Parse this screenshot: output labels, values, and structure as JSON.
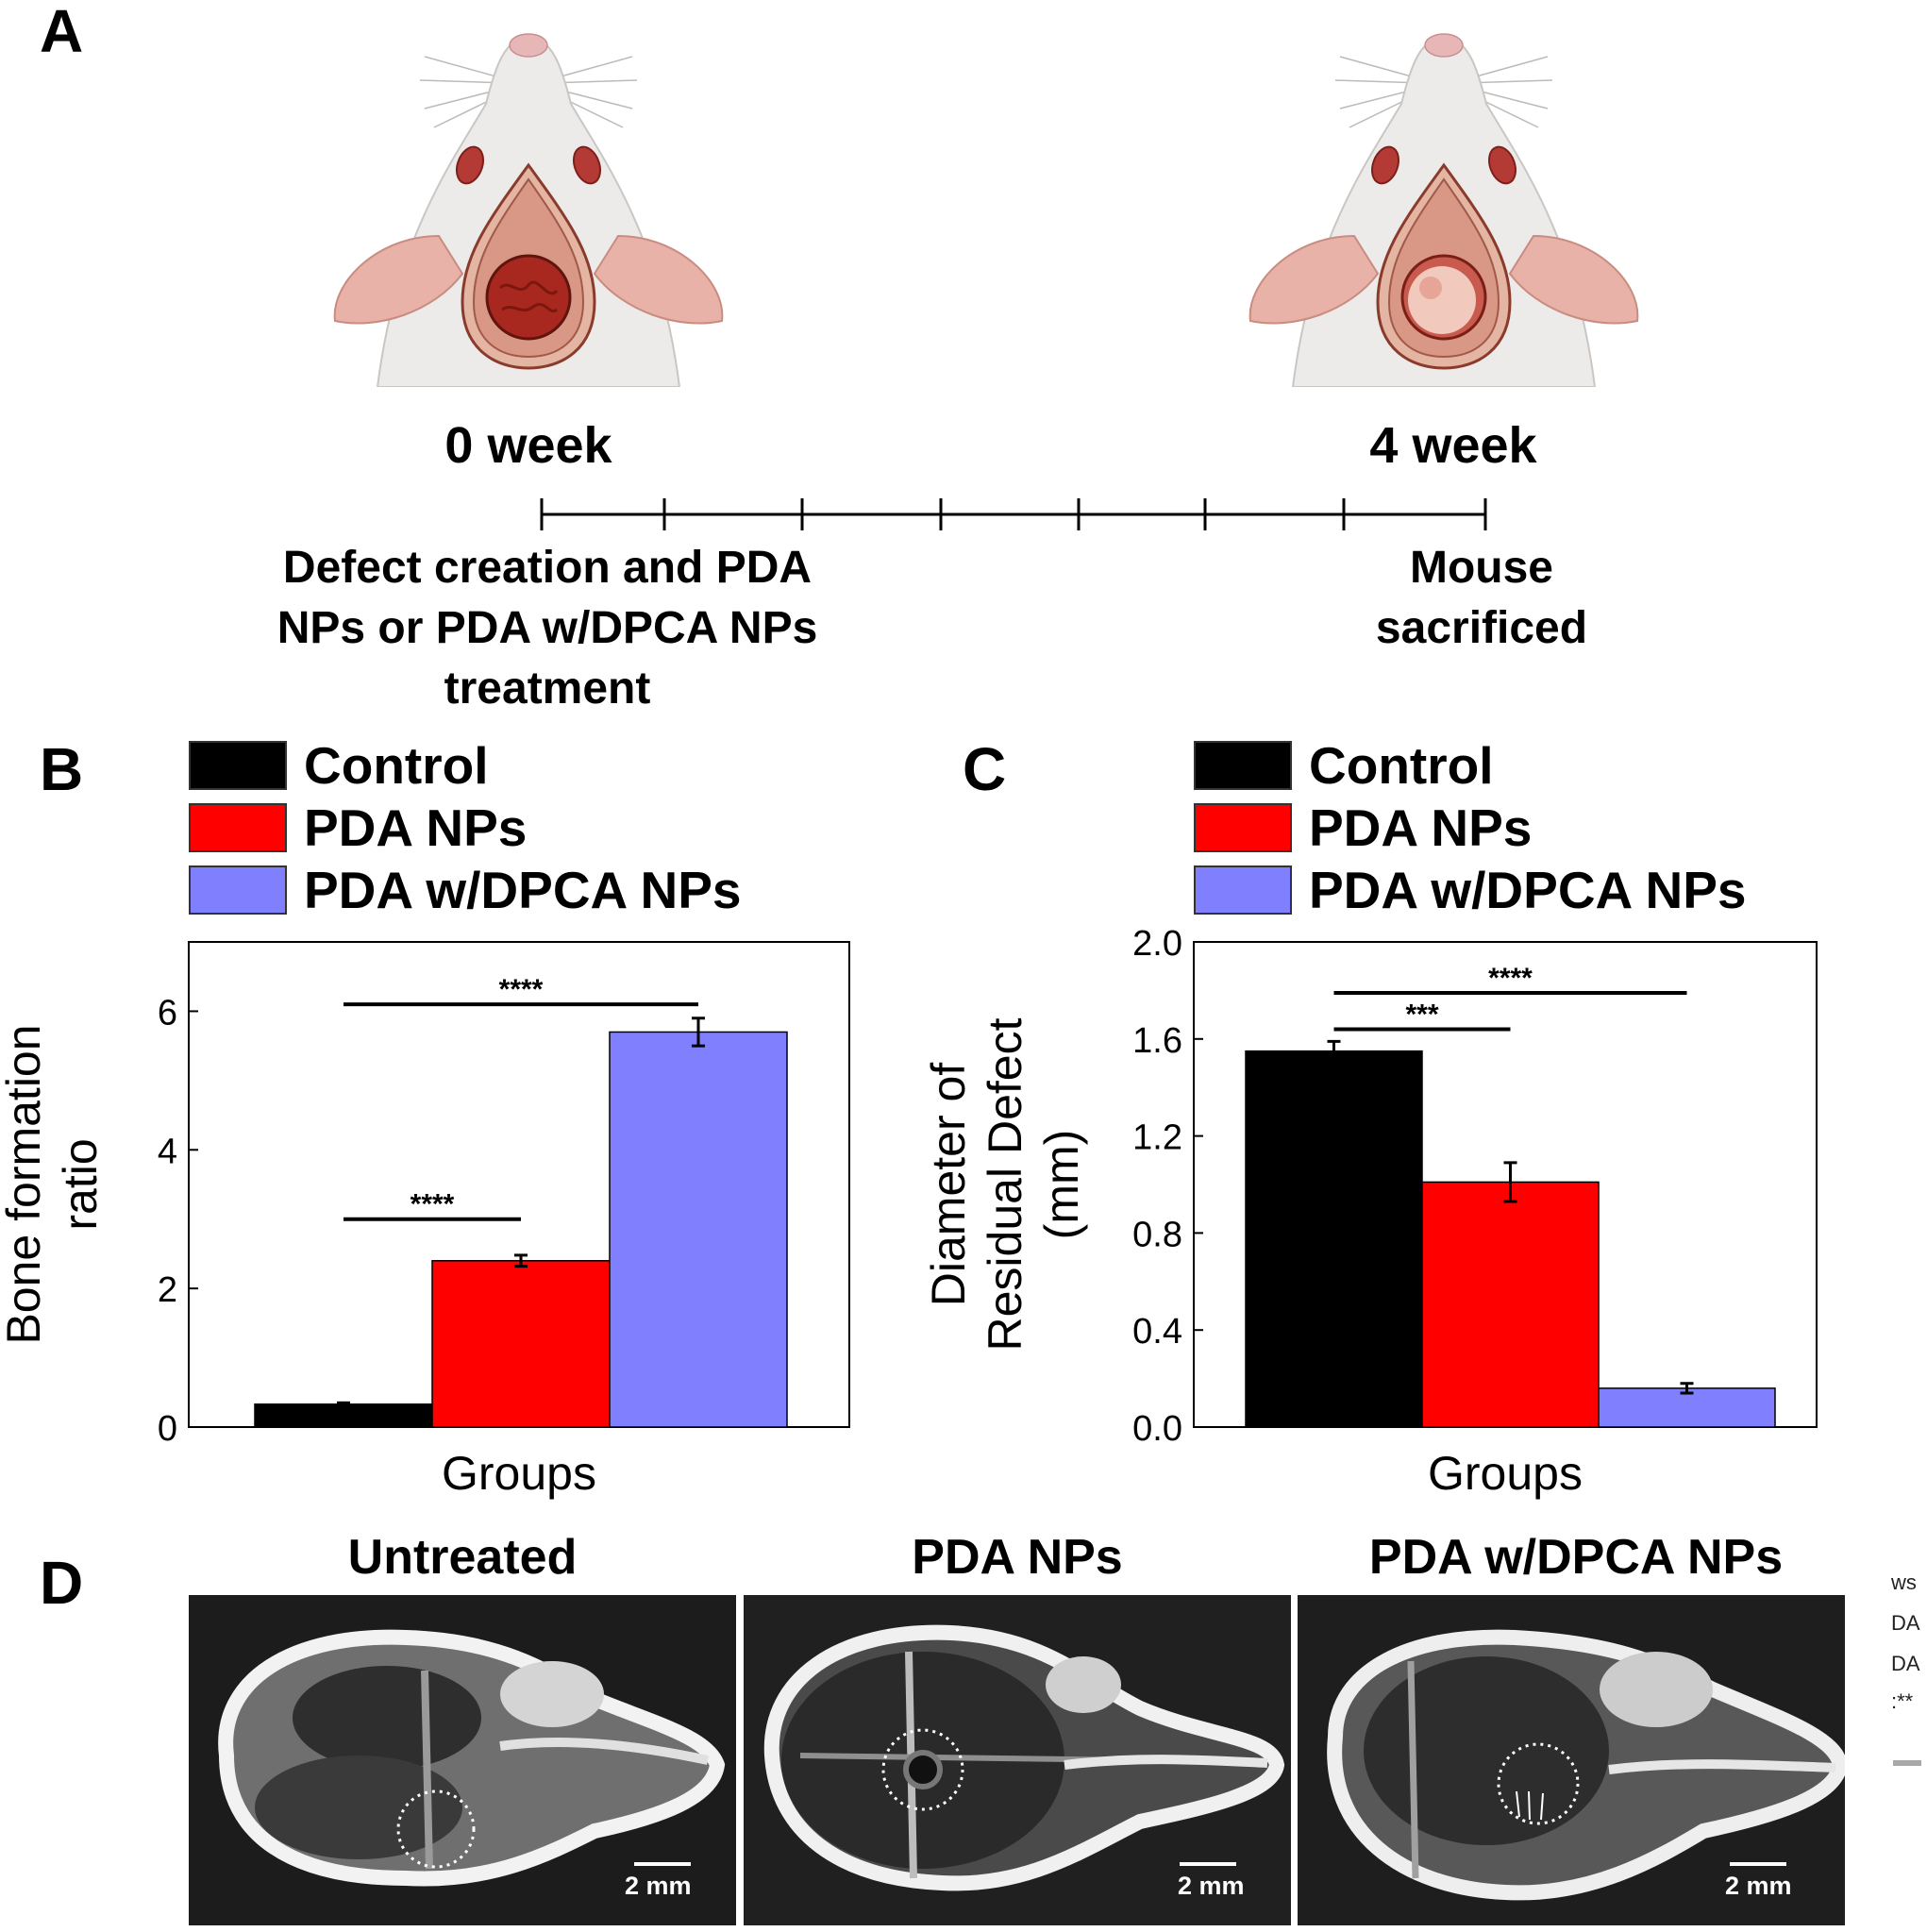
{
  "panels": {
    "a": "A",
    "b": "B",
    "c": "C",
    "d": "D"
  },
  "timeline": {
    "start_label": "0 week",
    "end_label": "4 week",
    "start_event_lines": [
      "Defect creation and PDA",
      "NPs or PDA w/DPCA NPs",
      "treatment"
    ],
    "end_event_lines": [
      "Mouse",
      "sacrificed"
    ]
  },
  "legend": [
    {
      "label": "Control",
      "color": "#000000"
    },
    {
      "label": "PDA NPs",
      "color": "#ff0000"
    },
    {
      "label": "PDA w/DPCA NPs",
      "color": "#8080ff"
    }
  ],
  "chart_data": [
    {
      "type": "bar",
      "panel": "B",
      "categories": [
        "Control",
        "PDA NPs",
        "PDA w/DPCA NPs"
      ],
      "values": [
        0.33,
        2.4,
        5.7
      ],
      "errors": [
        0.02,
        0.08,
        0.2
      ],
      "colors": [
        "#000000",
        "#ff0000",
        "#8080ff"
      ],
      "xlabel": "Groups",
      "ylabel_lines": [
        "Bone formation",
        "ratio"
      ],
      "ylim": [
        0,
        7
      ],
      "yticks": [
        "0",
        "2",
        "4",
        "6"
      ],
      "significance": [
        {
          "from": 0,
          "to": 1,
          "label": "****",
          "y": 3.0
        },
        {
          "from": 0,
          "to": 2,
          "label": "****",
          "y": 6.1
        }
      ]
    },
    {
      "type": "bar",
      "panel": "C",
      "categories": [
        "Control",
        "PDA NPs",
        "PDA w/DPCA NPs"
      ],
      "values": [
        1.55,
        1.01,
        0.16
      ],
      "errors": [
        0.04,
        0.08,
        0.02
      ],
      "colors": [
        "#000000",
        "#ff0000",
        "#8080ff"
      ],
      "xlabel": "Groups",
      "ylabel_lines": [
        "Diameter of",
        "Residual Defect",
        "(mm)"
      ],
      "ylim": [
        0,
        2.0
      ],
      "yticks": [
        "0.0",
        "0.4",
        "0.8",
        "1.2",
        "1.6",
        "2.0"
      ],
      "significance": [
        {
          "from": 0,
          "to": 1,
          "label": "***",
          "y": 1.64
        },
        {
          "from": 0,
          "to": 2,
          "label": "****",
          "y": 1.79
        }
      ]
    }
  ],
  "micrographs": [
    {
      "title": "Untreated",
      "scale": "2 mm"
    },
    {
      "title": "PDA NPs",
      "scale": "2 mm"
    },
    {
      "title": "PDA w/DPCA NPs",
      "scale": "2 mm"
    }
  ],
  "cropped_side_text": [
    "ws",
    "DA",
    "DA",
    ":**"
  ]
}
